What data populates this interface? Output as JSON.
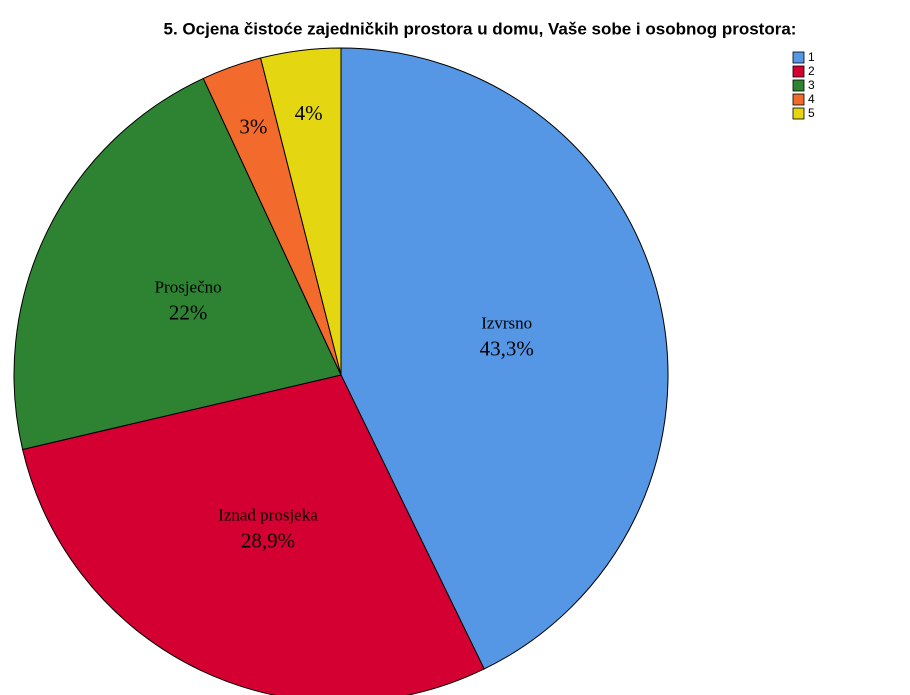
{
  "chart_data": {
    "type": "pie",
    "title": "5. Ocjena čistoće zajedničkih prostora u domu, Vaše sobe i osobnog prostora:",
    "categories": [
      "1",
      "2",
      "3",
      "4",
      "5"
    ],
    "slice_labels": [
      "Izvrsno",
      "Iznad prosjeka",
      "Prosječno",
      null,
      null
    ],
    "values": [
      43.3,
      28.9,
      22,
      3,
      4
    ],
    "value_labels": [
      "43,3%",
      "28,9%",
      "22%",
      "3%",
      "4%"
    ],
    "colors": [
      "#5596e5",
      "#d50032",
      "#2e8332",
      "#f26a2c",
      "#e4d611"
    ],
    "legend": "top-right"
  }
}
